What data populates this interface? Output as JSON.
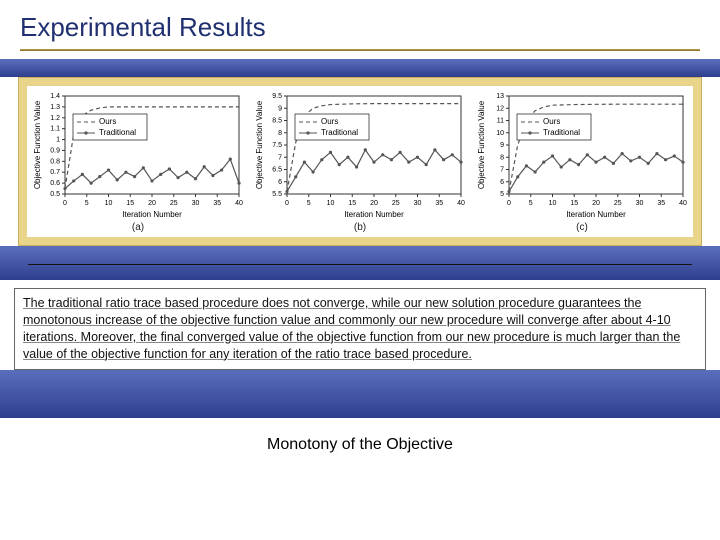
{
  "title": "Experimental Results",
  "caption": "The traditional ratio trace based procedure does not converge, while our new solution procedure guarantees the monotonous increase of the objective function value and commonly our new procedure will converge after about 4-10 iterations. Moreover, the final converged value of the objective function from our new procedure is much larger than the value of the objective function for any iteration of the ratio trace based procedure.",
  "footer": "Monotony of the Objective",
  "colors": {
    "title_color": "#203070",
    "gold_band": "#e8d58a",
    "blue_grad_top": "#5a6fbc",
    "blue_grad_bot": "#2e3e8d",
    "axis": "#333333",
    "ours_line": "#555555",
    "trad_line": "#555555",
    "bg": "#ffffff"
  },
  "xlabel": "Iteration Number",
  "ylabel": "Objective Function Value",
  "legend": {
    "ours": "Ours",
    "traditional": "Traditional"
  },
  "charts": [
    {
      "sub": "(a)",
      "xlim": [
        0,
        40
      ],
      "xtick_step": 5,
      "ylim": [
        0.5,
        1.4
      ],
      "yticks": [
        0.5,
        0.6,
        0.7,
        0.8,
        0.9,
        1.0,
        1.1,
        1.2,
        1.3,
        1.4
      ],
      "ours": {
        "x": [
          0,
          2,
          4,
          6,
          8,
          10,
          15,
          20,
          25,
          30,
          35,
          40
        ],
        "y": [
          0.55,
          1.05,
          1.22,
          1.27,
          1.29,
          1.3,
          1.3,
          1.3,
          1.3,
          1.3,
          1.3,
          1.3
        ],
        "dash": "4,3",
        "marker": false
      },
      "traditional": {
        "x": [
          0,
          2,
          4,
          6,
          8,
          10,
          12,
          14,
          16,
          18,
          20,
          22,
          24,
          26,
          28,
          30,
          32,
          34,
          36,
          38,
          40
        ],
        "y": [
          0.55,
          0.62,
          0.68,
          0.6,
          0.66,
          0.72,
          0.63,
          0.7,
          0.66,
          0.74,
          0.62,
          0.68,
          0.73,
          0.65,
          0.7,
          0.64,
          0.75,
          0.67,
          0.72,
          0.82,
          0.6
        ],
        "dash": "",
        "marker": true
      }
    },
    {
      "sub": "(b)",
      "xlim": [
        0,
        40
      ],
      "xtick_step": 5,
      "ylim": [
        5.5,
        9.5
      ],
      "yticks": [
        5.5,
        6.0,
        6.5,
        7.0,
        7.5,
        8.0,
        8.5,
        9.0,
        9.5
      ],
      "ours": {
        "x": [
          0,
          2,
          4,
          6,
          8,
          10,
          15,
          20,
          25,
          30,
          35,
          40
        ],
        "y": [
          5.6,
          7.6,
          8.7,
          9.0,
          9.1,
          9.15,
          9.18,
          9.19,
          9.19,
          9.19,
          9.19,
          9.19
        ],
        "dash": "4,3",
        "marker": false
      },
      "traditional": {
        "x": [
          0,
          2,
          4,
          6,
          8,
          10,
          12,
          14,
          16,
          18,
          20,
          22,
          24,
          26,
          28,
          30,
          32,
          34,
          36,
          38,
          40
        ],
        "y": [
          5.6,
          6.2,
          6.8,
          6.4,
          6.9,
          7.2,
          6.7,
          7.0,
          6.6,
          7.3,
          6.8,
          7.1,
          6.9,
          7.2,
          6.8,
          7.0,
          6.7,
          7.3,
          6.9,
          7.1,
          6.8
        ],
        "dash": "",
        "marker": true
      }
    },
    {
      "sub": "(c)",
      "xlim": [
        0,
        40
      ],
      "xtick_step": 5,
      "ylim": [
        5,
        13
      ],
      "yticks": [
        5,
        6,
        7,
        8,
        9,
        10,
        11,
        12,
        13
      ],
      "ours": {
        "x": [
          0,
          2,
          4,
          6,
          8,
          10,
          15,
          20,
          25,
          30,
          35,
          40
        ],
        "y": [
          5.2,
          9.0,
          11.0,
          11.8,
          12.1,
          12.25,
          12.3,
          12.32,
          12.33,
          12.33,
          12.33,
          12.33
        ],
        "dash": "4,3",
        "marker": false
      },
      "traditional": {
        "x": [
          0,
          2,
          4,
          6,
          8,
          10,
          12,
          14,
          16,
          18,
          20,
          22,
          24,
          26,
          28,
          30,
          32,
          34,
          36,
          38,
          40
        ],
        "y": [
          5.2,
          6.4,
          7.3,
          6.8,
          7.6,
          8.1,
          7.2,
          7.8,
          7.4,
          8.2,
          7.6,
          8.0,
          7.5,
          8.3,
          7.7,
          8.0,
          7.5,
          8.3,
          7.8,
          8.1,
          7.6
        ],
        "dash": "",
        "marker": true
      }
    }
  ],
  "axis_fontsize": 8,
  "tick_fontsize": 7,
  "legend_fontsize": 8,
  "line_width": 1.2,
  "marker_size": 1.6
}
